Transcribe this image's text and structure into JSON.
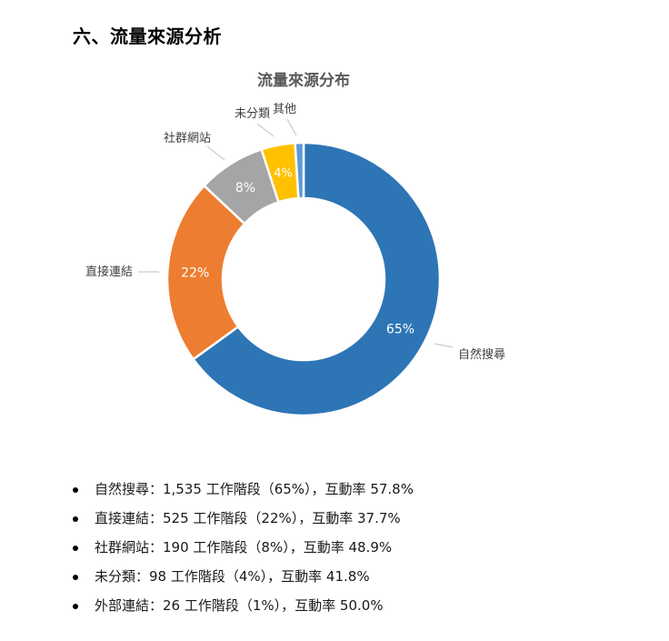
{
  "section": {
    "heading": "六、流量來源分析"
  },
  "chart_data": {
    "type": "pie",
    "donut": true,
    "title": "流量來源分布",
    "categories": [
      "自然搜尋",
      "直接連結",
      "社群網站",
      "未分類",
      "其他"
    ],
    "values": [
      65,
      22,
      8,
      4,
      1
    ],
    "data_labels": [
      "65%",
      "22%",
      "8%",
      "4%",
      ""
    ],
    "colors": [
      "#2e75b6",
      "#ed7d31",
      "#a5a5a5",
      "#ffc000",
      "#5b9bd5"
    ],
    "legend": "none"
  },
  "bullets": [
    {
      "text": "自然搜尋：1,535 工作階段（65%），互動率 57.8%"
    },
    {
      "text": "直接連結：525 工作階段（22%），互動率 37.7%"
    },
    {
      "text": "社群網站：190 工作階段（8%），互動率 48.9%"
    },
    {
      "text": "未分類：98 工作階段（4%），互動率 41.8%"
    },
    {
      "text": "外部連結：26 工作階段（1%），互動率 50.0%"
    }
  ]
}
